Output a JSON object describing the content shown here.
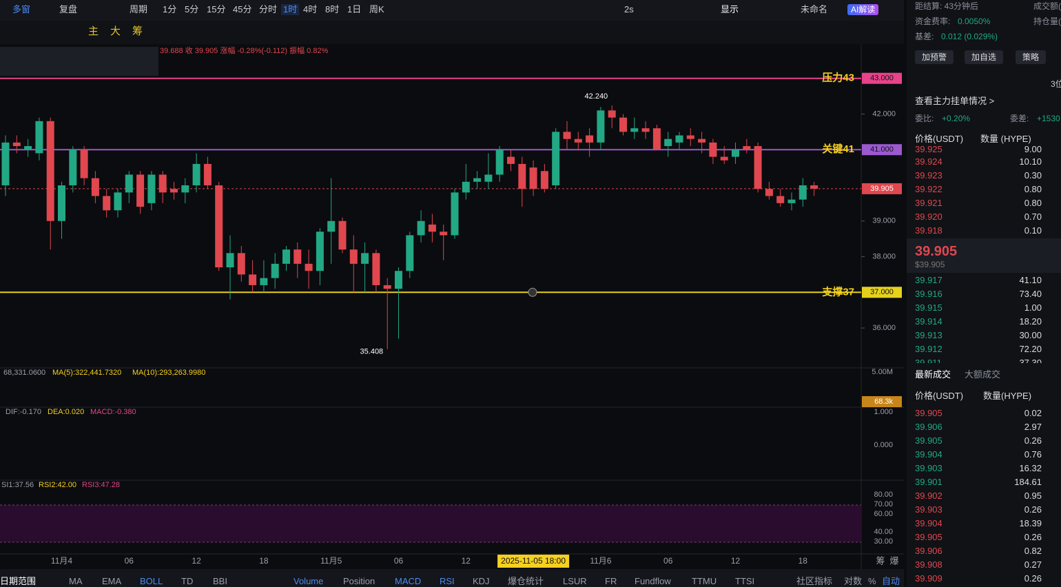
{
  "toolbar": {
    "left": [
      "多窗",
      "复盘",
      "周期"
    ],
    "periods": [
      "1分",
      "5分",
      "15分",
      "45分",
      "分时",
      "1时",
      "4时",
      "8时",
      "1日",
      "周K"
    ],
    "active_period": "1时",
    "right": [
      "2s",
      "显示",
      "未命名",
      "AI解读"
    ],
    "tools": [
      "主",
      "大",
      "筹"
    ]
  },
  "info_line": "39.688 收 39.905 涨幅 -0.28%(-0.112) 振幅 0.82%",
  "chart_data": {
    "type": "candlestick",
    "up_color": "#22a884",
    "down_color": "#e0474f",
    "candles": [
      [
        40.0,
        41.4,
        39.7,
        41.2
      ],
      [
        41.2,
        41.4,
        40.9,
        41.1
      ],
      [
        41.0,
        41.3,
        40.8,
        41.1
      ],
      [
        40.9,
        41.9,
        40.7,
        41.8
      ],
      [
        41.8,
        41.9,
        38.2,
        39.0
      ],
      [
        39.0,
        40.1,
        38.5,
        40.0
      ],
      [
        40.0,
        41.1,
        39.8,
        41.0
      ],
      [
        41.0,
        41.1,
        40.0,
        40.2
      ],
      [
        40.2,
        40.4,
        39.5,
        39.7
      ],
      [
        39.7,
        39.9,
        39.1,
        39.3
      ],
      [
        39.3,
        39.9,
        39.1,
        39.8
      ],
      [
        39.8,
        40.4,
        39.5,
        40.3
      ],
      [
        40.3,
        40.4,
        39.2,
        39.4
      ],
      [
        39.5,
        40.4,
        39.3,
        40.3
      ],
      [
        40.3,
        40.4,
        39.5,
        39.8
      ],
      [
        39.9,
        40.1,
        39.6,
        39.8
      ],
      [
        39.8,
        40.2,
        39.5,
        40.0
      ],
      [
        40.0,
        40.9,
        39.8,
        40.6
      ],
      [
        40.6,
        40.8,
        39.9,
        40.0
      ],
      [
        40.0,
        40.1,
        37.6,
        37.7
      ],
      [
        37.7,
        38.6,
        36.8,
        38.1
      ],
      [
        38.1,
        38.3,
        37.3,
        37.5
      ],
      [
        37.5,
        37.9,
        37.0,
        37.2
      ],
      [
        37.2,
        37.9,
        37.0,
        37.4
      ],
      [
        37.4,
        38.1,
        37.1,
        37.8
      ],
      [
        37.8,
        38.3,
        37.6,
        38.2
      ],
      [
        38.2,
        38.4,
        37.4,
        37.8
      ],
      [
        37.8,
        38.2,
        37.1,
        37.6
      ],
      [
        37.6,
        38.8,
        37.2,
        38.7
      ],
      [
        38.7,
        40.2,
        37.8,
        39.0
      ],
      [
        39.0,
        39.1,
        38.1,
        38.2
      ],
      [
        38.2,
        38.6,
        37.0,
        37.8
      ],
      [
        37.8,
        38.4,
        37.0,
        38.1
      ],
      [
        38.1,
        38.2,
        37.0,
        37.2
      ],
      [
        37.2,
        37.4,
        35.408,
        37.1
      ],
      [
        37.1,
        37.7,
        35.7,
        37.6
      ],
      [
        37.6,
        38.7,
        37.4,
        38.6
      ],
      [
        38.6,
        39.3,
        38.4,
        39.0
      ],
      [
        38.9,
        39.2,
        38.4,
        38.7
      ],
      [
        38.7,
        38.9,
        37.9,
        38.6
      ],
      [
        38.6,
        39.9,
        38.5,
        39.8
      ],
      [
        39.8,
        40.6,
        39.6,
        40.1
      ],
      [
        40.1,
        40.4,
        39.9,
        40.2
      ],
      [
        40.1,
        40.9,
        39.9,
        40.3
      ],
      [
        40.3,
        41.1,
        40.1,
        41.0
      ],
      [
        40.8,
        41.0,
        40.4,
        40.6
      ],
      [
        40.6,
        40.8,
        39.4,
        39.9
      ],
      [
        40.5,
        40.7,
        39.7,
        39.9
      ],
      [
        40.4,
        40.6,
        39.8,
        39.9
      ],
      [
        40.0,
        41.6,
        39.9,
        41.5
      ],
      [
        41.5,
        41.8,
        41.0,
        41.3
      ],
      [
        41.3,
        41.5,
        41.0,
        41.2
      ],
      [
        41.4,
        41.6,
        40.8,
        41.2
      ],
      [
        41.2,
        42.2,
        41.0,
        42.1
      ],
      [
        42.1,
        42.24,
        41.6,
        41.9
      ],
      [
        41.9,
        42.0,
        41.4,
        41.5
      ],
      [
        41.5,
        41.9,
        41.3,
        41.6
      ],
      [
        41.6,
        41.8,
        41.3,
        41.5
      ],
      [
        41.6,
        41.7,
        41.0,
        41.0
      ],
      [
        41.1,
        41.5,
        40.8,
        41.3
      ],
      [
        41.2,
        41.5,
        41.0,
        41.4
      ],
      [
        41.4,
        41.6,
        41.1,
        41.3
      ],
      [
        41.3,
        41.5,
        40.9,
        41.2
      ],
      [
        41.2,
        41.3,
        40.6,
        40.8
      ],
      [
        40.8,
        41.1,
        40.6,
        40.7
      ],
      [
        40.8,
        41.2,
        40.6,
        41.0
      ],
      [
        41.1,
        41.3,
        40.9,
        41.0
      ],
      [
        41.1,
        41.2,
        39.8,
        39.9
      ],
      [
        39.9,
        40.1,
        39.6,
        39.7
      ],
      [
        39.7,
        39.9,
        39.4,
        39.5
      ],
      [
        39.5,
        39.8,
        39.3,
        39.6
      ],
      [
        39.6,
        40.2,
        39.4,
        40.0
      ],
      [
        40.0,
        40.1,
        39.7,
        39.905
      ]
    ],
    "categories": [
      null,
      null,
      null,
      null,
      null,
      "11月4",
      null,
      null,
      null,
      null,
      null,
      "06",
      null,
      null,
      null,
      null,
      null,
      "12",
      null,
      null,
      null,
      null,
      null,
      "18",
      null,
      null,
      null,
      null,
      null,
      "11月5",
      null,
      null,
      null,
      null,
      null,
      "06",
      null,
      null,
      null,
      null,
      null,
      "12",
      null,
      null,
      null,
      null,
      null,
      "2025-11-05 18:00",
      null,
      null,
      null,
      null,
      null,
      "11月6",
      null,
      null,
      null,
      null,
      null,
      "06",
      null,
      null,
      null,
      null,
      null,
      "12",
      null,
      null,
      null,
      null,
      null,
      "18",
      null
    ],
    "crosshair": "2025-11-05 18:00",
    "ylim": [
      34.9,
      43.96
    ],
    "yticks": [
      {
        "value": 36,
        "label": "36.000"
      },
      {
        "value": 38,
        "label": "38.000"
      },
      {
        "value": 39,
        "label": "39.000"
      },
      {
        "value": 42,
        "label": "42.000"
      }
    ],
    "levels": [
      {
        "value": 43,
        "label": "43.000",
        "name": "压力43",
        "color": "#e8438a"
      },
      {
        "value": 41,
        "label": "41.000",
        "name": "关键41",
        "color": "#9b59d0"
      },
      {
        "value": 37,
        "label": "37.000",
        "name": "支撑37",
        "color": "#e6d21c"
      }
    ],
    "last_price": {
      "value": 39.905,
      "label": "39.905",
      "color": "#e0474f"
    },
    "annotations": [
      {
        "value": 42.24,
        "label": "42.240"
      },
      {
        "value": 35.408,
        "label": "35.408"
      }
    ],
    "volume_legend": [
      "68,331.0600",
      "MA(5):322,441.7320",
      "MA(10):293,263.9980"
    ],
    "volume_ticks": [
      "5.00M",
      "68.3k"
    ],
    "macd_legend": [
      "DIF:-0.170",
      "DEA:0.020",
      "MACD:-0.380"
    ],
    "macd_ticks": [
      "1.000",
      "0.000"
    ],
    "rsi_legend": [
      "SI1:37.56",
      "RSI2:42.00",
      "RSI3:47.28"
    ],
    "rsi_ticks": [
      "80.00",
      "70.00",
      "60.00",
      "40.00",
      "30.00"
    ],
    "x_right": [
      "筹",
      "爆"
    ]
  },
  "bottom_tabs": [
    "日期范围",
    "MA",
    "EMA",
    "BOLL",
    "TD",
    "BBI",
    "Volume",
    "Position",
    "MACD",
    "RSI",
    "KDJ",
    "爆仓统计",
    "LSUR",
    "FR",
    "Fundflow",
    "TTMU",
    "TTSI",
    "社区指标",
    "对数",
    "%",
    "自动"
  ],
  "panel": {
    "settle": "距结算: 43分钟后",
    "turnover": "成交额(",
    "funding": "资金费率:",
    "funding_value": "0.0050%",
    "oi": "持仓量(",
    "basis": "基差:",
    "basis_value": "0.012 (0.029%)",
    "buttons": [
      "加预警",
      "加自选",
      "策略"
    ],
    "digits": "3位",
    "main_orders": "查看主力挂单情况 >",
    "ratio": "委比:",
    "ratio_value": "+0.20%",
    "diff": "委差:",
    "diff_value": "+1530",
    "book_header": [
      "价格(USDT)",
      "数量 (HYPE)"
    ],
    "asks": [
      [
        "39.925",
        "9.00"
      ],
      [
        "39.924",
        "10.10"
      ],
      [
        "39.923",
        "0.30"
      ],
      [
        "39.922",
        "0.80"
      ],
      [
        "39.921",
        "0.80"
      ],
      [
        "39.920",
        "0.70"
      ],
      [
        "39.918",
        "0.10"
      ]
    ],
    "mid": "39.905",
    "mid_usd": "$39.905",
    "bids": [
      [
        "39.917",
        "41.10"
      ],
      [
        "39.916",
        "73.40"
      ],
      [
        "39.915",
        "1.00"
      ],
      [
        "39.914",
        "18.20"
      ],
      [
        "39.913",
        "30.00"
      ],
      [
        "39.912",
        "72.20"
      ],
      [
        "39.911",
        "37.30"
      ]
    ],
    "trade_tabs": [
      "最新成交",
      "大额成交"
    ],
    "trade_header": [
      "价格(USDT)",
      "数量(HYPE)"
    ],
    "trades": [
      {
        "price": "39.905",
        "qty": "0.02",
        "color": "#e0474f"
      },
      {
        "price": "39.906",
        "qty": "2.97",
        "color": "#22a884"
      },
      {
        "price": "39.905",
        "qty": "0.26",
        "color": "#22a884"
      },
      {
        "price": "39.904",
        "qty": "0.76",
        "color": "#22a884"
      },
      {
        "price": "39.903",
        "qty": "16.32",
        "color": "#22a884"
      },
      {
        "price": "39.901",
        "qty": "184.61",
        "color": "#22a884"
      },
      {
        "price": "39.902",
        "qty": "0.95",
        "color": "#e0474f"
      },
      {
        "price": "39.903",
        "qty": "0.26",
        "color": "#e0474f"
      },
      {
        "price": "39.904",
        "qty": "18.39",
        "color": "#e0474f"
      },
      {
        "price": "39.905",
        "qty": "0.26",
        "color": "#e0474f"
      },
      {
        "price": "39.906",
        "qty": "0.82",
        "color": "#e0474f"
      },
      {
        "price": "39.908",
        "qty": "0.27",
        "color": "#e0474f"
      },
      {
        "price": "39.909",
        "qty": "0.26",
        "color": "#e0474f"
      }
    ]
  }
}
